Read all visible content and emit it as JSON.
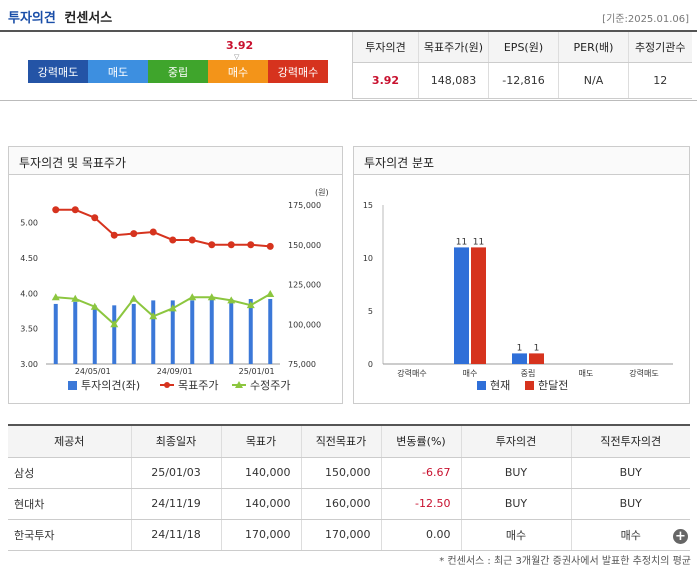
{
  "header": {
    "title_main": "투자의견",
    "title_sub": "컨센서스",
    "date": "[기준:2025.01.06]"
  },
  "scale": {
    "value": "3.92",
    "marker": "▽",
    "segments": [
      "강력매도",
      "매도",
      "중립",
      "매수",
      "강력매수"
    ]
  },
  "summary": {
    "headers": [
      "투자의견",
      "목표주가(원)",
      "EPS(원)",
      "PER(배)",
      "추정기관수"
    ],
    "values": [
      "3.92",
      "148,083",
      "-12,816",
      "N/A",
      "12"
    ]
  },
  "left_panel": {
    "title": "투자의견 및 목표주가",
    "unit": "(원)",
    "legend": [
      "투자의견(좌)",
      "목표주가",
      "수정주가"
    ]
  },
  "right_panel": {
    "title": "투자의견 분포",
    "legend": [
      "현재",
      "한달전"
    ]
  },
  "chart_data": [
    {
      "type": "line",
      "x_tick_labels": [
        "24/05/01",
        "24/09/01",
        "25/01/01"
      ],
      "y_left": {
        "ticks": [
          "3.00",
          "3.50",
          "4.00",
          "4.50",
          "5.00"
        ],
        "range": [
          3.0,
          5.25
        ]
      },
      "y_right": {
        "ticks": [
          "75,000",
          "100,000",
          "125,000",
          "150,000",
          "175,000"
        ],
        "range": [
          75000,
          175000
        ]
      },
      "series": [
        {
          "name": "투자의견(좌)",
          "kind": "bar",
          "color": "#3b78d8",
          "values": [
            3.85,
            3.88,
            3.83,
            3.83,
            3.85,
            3.9,
            3.9,
            3.9,
            3.93,
            3.92,
            3.92,
            3.92
          ]
        },
        {
          "name": "목표주가",
          "kind": "line",
          "color": "#d6331e",
          "values": [
            172000,
            172000,
            167000,
            156000,
            157000,
            158000,
            153000,
            153000,
            150000,
            150000,
            150000,
            149000
          ]
        },
        {
          "name": "수정주가",
          "kind": "line",
          "color": "#8cc63f",
          "values": [
            117000,
            116000,
            111000,
            100000,
            116000,
            105000,
            110000,
            117000,
            117000,
            115000,
            112000,
            119000
          ]
        }
      ]
    },
    {
      "type": "bar",
      "categories": [
        "강력매수",
        "매수",
        "중립",
        "매도",
        "강력매도"
      ],
      "y_ticks": [
        "0",
        "5",
        "10",
        "15"
      ],
      "ylim": [
        0,
        15
      ],
      "series": [
        {
          "name": "현재",
          "color": "#2f6fd8",
          "values": [
            0,
            11,
            1,
            0,
            0
          ]
        },
        {
          "name": "한달전",
          "color": "#d6331e",
          "values": [
            0,
            11,
            1,
            0,
            0
          ]
        }
      ]
    }
  ],
  "table": {
    "headers": [
      "제공처",
      "최종일자",
      "목표가",
      "직전목표가",
      "변동률(%)",
      "투자의견",
      "직전투자의견"
    ],
    "rows": [
      [
        "삼성",
        "25/01/03",
        "140,000",
        "150,000",
        "-6.67",
        "BUY",
        "BUY"
      ],
      [
        "현대차",
        "24/11/19",
        "140,000",
        "160,000",
        "-12.50",
        "BUY",
        "BUY"
      ],
      [
        "한국투자",
        "24/11/18",
        "170,000",
        "170,000",
        "0.00",
        "매수",
        "매수"
      ]
    ]
  },
  "more_button": "+",
  "footnote": "* 컨센서스 : 최근 3개월간 증권사에서 발표한 추정치의 평균"
}
